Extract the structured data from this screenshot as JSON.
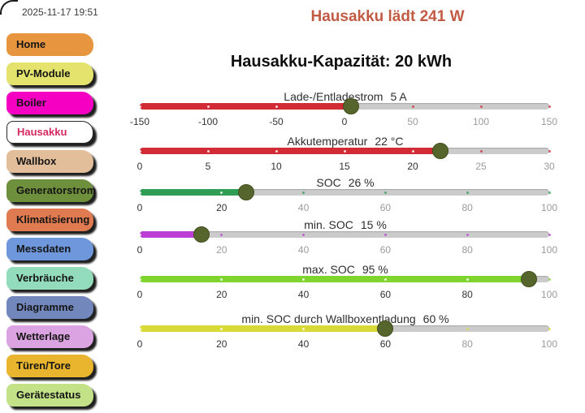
{
  "header": {
    "timestamp": "2025-11-17 19:51",
    "title": "Hausakku lädt 241 W",
    "title_color": "#C25B43",
    "subtitle": "Hausakku-Kapazität: 20 kWh"
  },
  "sidebar": {
    "items": [
      {
        "label": "Home",
        "bg": "#E8953F",
        "text": "#151515",
        "shadow": false,
        "active": false
      },
      {
        "label": "PV-Module",
        "bg": "#E3E36E",
        "text": "#151515",
        "shadow": true,
        "active": false
      },
      {
        "label": "Boiler",
        "bg": "#F500C3",
        "text": "#151515",
        "shadow": true,
        "active": false
      },
      {
        "label": "Hausakku",
        "bg": "#FFFFFF",
        "text": "#D62A5E",
        "shadow": true,
        "active": true
      },
      {
        "label": "Wallbox",
        "bg": "#E3BE9B",
        "text": "#151515",
        "shadow": true,
        "active": false
      },
      {
        "label": "Generatorstrom",
        "bg": "#6E8F3C",
        "text": "#151515",
        "shadow": true,
        "active": false
      },
      {
        "label": "Klimatisierung",
        "bg": "#E07A50",
        "text": "#151515",
        "shadow": true,
        "active": false
      },
      {
        "label": "Messdaten",
        "bg": "#6F97DB",
        "text": "#151515",
        "shadow": true,
        "active": false
      },
      {
        "label": "Verbräuche",
        "bg": "#92DCBB",
        "text": "#151515",
        "shadow": true,
        "active": false
      },
      {
        "label": "Diagramme",
        "bg": "#7288BD",
        "text": "#151515",
        "shadow": true,
        "active": false
      },
      {
        "label": "Wetterlage",
        "bg": "#DBA3E1",
        "text": "#151515",
        "shadow": true,
        "active": false
      },
      {
        "label": "Türen/Tore",
        "bg": "#E9B52F",
        "text": "#151515",
        "shadow": true,
        "active": false
      },
      {
        "label": "Gerätestatus",
        "bg": "#C3E287",
        "text": "#151515",
        "shadow": true,
        "active": false
      }
    ]
  },
  "sliders": [
    {
      "name": "Lade-/Entladestrom",
      "value_text": "5 A",
      "value": 5,
      "min": -150,
      "max": 150,
      "ticks": [
        -150,
        -100,
        -50,
        0,
        50,
        100,
        150
      ],
      "color": "#D32B35"
    },
    {
      "name": "Akkutemperatur",
      "value_text": "22 °C",
      "value": 22,
      "min": 0,
      "max": 30,
      "ticks": [
        0,
        5,
        10,
        15,
        20,
        25,
        30
      ],
      "color": "#D32B35"
    },
    {
      "name": "SOC",
      "value_text": "26 %",
      "value": 26,
      "min": 0,
      "max": 100,
      "ticks": [
        0,
        20,
        40,
        60,
        80,
        100
      ],
      "color": "#2F9E54"
    },
    {
      "name": "min. SOC",
      "value_text": "15 %",
      "value": 15,
      "min": 0,
      "max": 100,
      "ticks": [
        0,
        20,
        40,
        60,
        80,
        100
      ],
      "color": "#BB3FD4"
    },
    {
      "name": "max. SOC",
      "value_text": "95 %",
      "value": 95,
      "min": 0,
      "max": 100,
      "ticks": [
        0,
        20,
        40,
        60,
        80,
        100
      ],
      "color": "#80D42E"
    },
    {
      "name": "min. SOC durch Wallboxentladung",
      "value_text": "60 %",
      "value": 60,
      "min": 0,
      "max": 100,
      "ticks": [
        0,
        20,
        40,
        60,
        80,
        100
      ],
      "color": "#D8DB35"
    }
  ],
  "colors": {
    "thumb": "#55652B",
    "track": "#CBCBCB",
    "tick_active": "#333333",
    "tick_inactive": "#9B9B9B",
    "tick_dot_on_fill": "#FFFFFF"
  }
}
